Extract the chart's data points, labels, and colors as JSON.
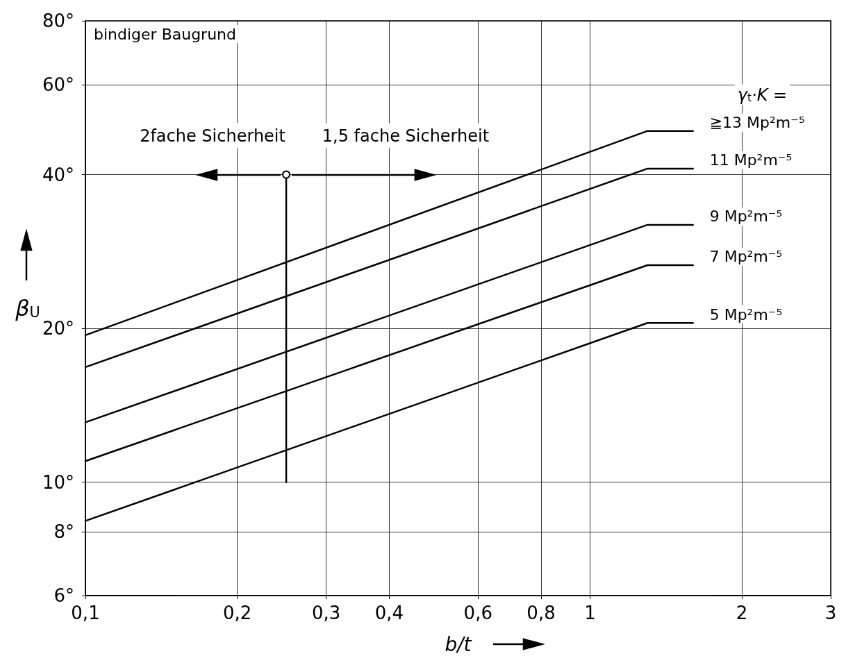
{
  "chart_data": {
    "type": "line",
    "xlabel": "b/t",
    "ylabel": "β$_{U}$",
    "legend_title": "γ$_{t}$·K =",
    "log": "xy",
    "xlim": [
      0.1,
      3
    ],
    "ylim": [
      6,
      80
    ],
    "xticks": [
      {
        "value": 0.1,
        "label": "0,1"
      },
      {
        "value": 0.2,
        "label": "0,2"
      },
      {
        "value": 0.3,
        "label": "0,3"
      },
      {
        "value": 0.4,
        "label": "0,4"
      },
      {
        "value": 0.6,
        "label": "0,6"
      },
      {
        "value": 0.8,
        "label": "0,8"
      },
      1,
      2,
      3
    ],
    "yticks": [
      {
        "value": 6,
        "label": "6°"
      },
      {
        "value": 8,
        "label": "8°"
      },
      {
        "value": 10,
        "label": "10°"
      },
      {
        "value": 20,
        "label": "20°"
      },
      {
        "value": 40,
        "label": "40°"
      },
      {
        "value": 60,
        "label": "60°"
      },
      {
        "value": 80,
        "label": "80°"
      }
    ],
    "grid": true,
    "legend": false,
    "line_style": "solid",
    "marker": "none",
    "x": [
      0.1,
      1.3,
      1.6
    ],
    "series": [
      {
        "name": "≧13 Mp²m⁻⁵",
        "color": "#000000",
        "values": [
          19.4,
          48.7,
          48.7
        ]
      },
      {
        "name": "11 Mp²m⁻⁵",
        "color": "#000000",
        "values": [
          16.8,
          41.1,
          41.1
        ]
      },
      {
        "name": "9 Mp²m⁻⁵",
        "color": "#000000",
        "values": [
          13.1,
          31.9,
          31.9
        ]
      },
      {
        "name": "7 Mp²m⁻⁵",
        "color": "#000000",
        "values": [
          11.0,
          26.6,
          26.6
        ]
      },
      {
        "name": "5 Mp²m⁻⁵",
        "color": "#000000",
        "values": [
          8.4,
          20.5,
          20.5
        ]
      },
      {
        "color": "#000000",
        "x": [
          0.25,
          0.25
        ],
        "values": [
          10,
          40
        ],
        "marker": "circle"
      }
    ],
    "annotations": [
      "bindiger Baugrund",
      "2fache Sicherheit",
      "1,5 fache Sicherheit"
    ]
  }
}
